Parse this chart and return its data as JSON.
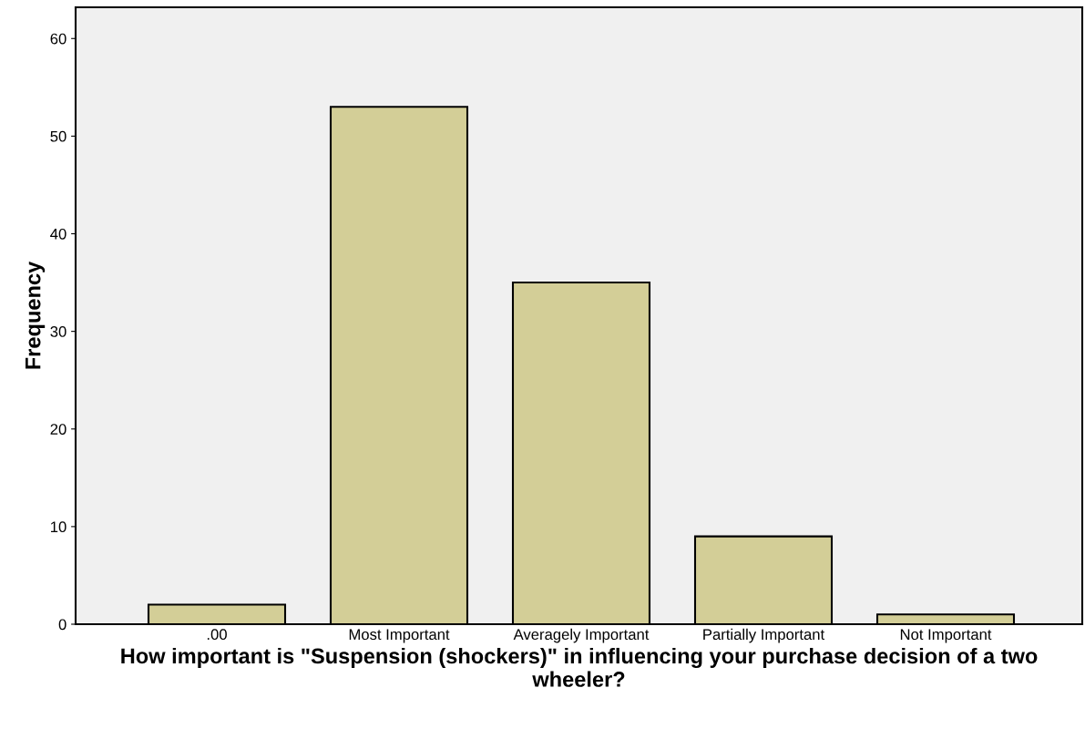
{
  "chart_data": {
    "type": "bar",
    "xlabel": "How important is \"Suspension (shockers)\" in influencing your purchase decision of a two wheeler?",
    "ylabel": "Frequency",
    "categories": [
      ".00",
      "Most Important",
      "Averagely Important",
      "Partially Important",
      "Not Important"
    ],
    "values": [
      2,
      53,
      35,
      9,
      1
    ],
    "color": "#d3ce97",
    "ylim": [
      0,
      63.2
    ],
    "yticks": [
      0,
      10,
      20,
      30,
      40,
      50,
      60
    ],
    "grid": false,
    "legend": false
  }
}
